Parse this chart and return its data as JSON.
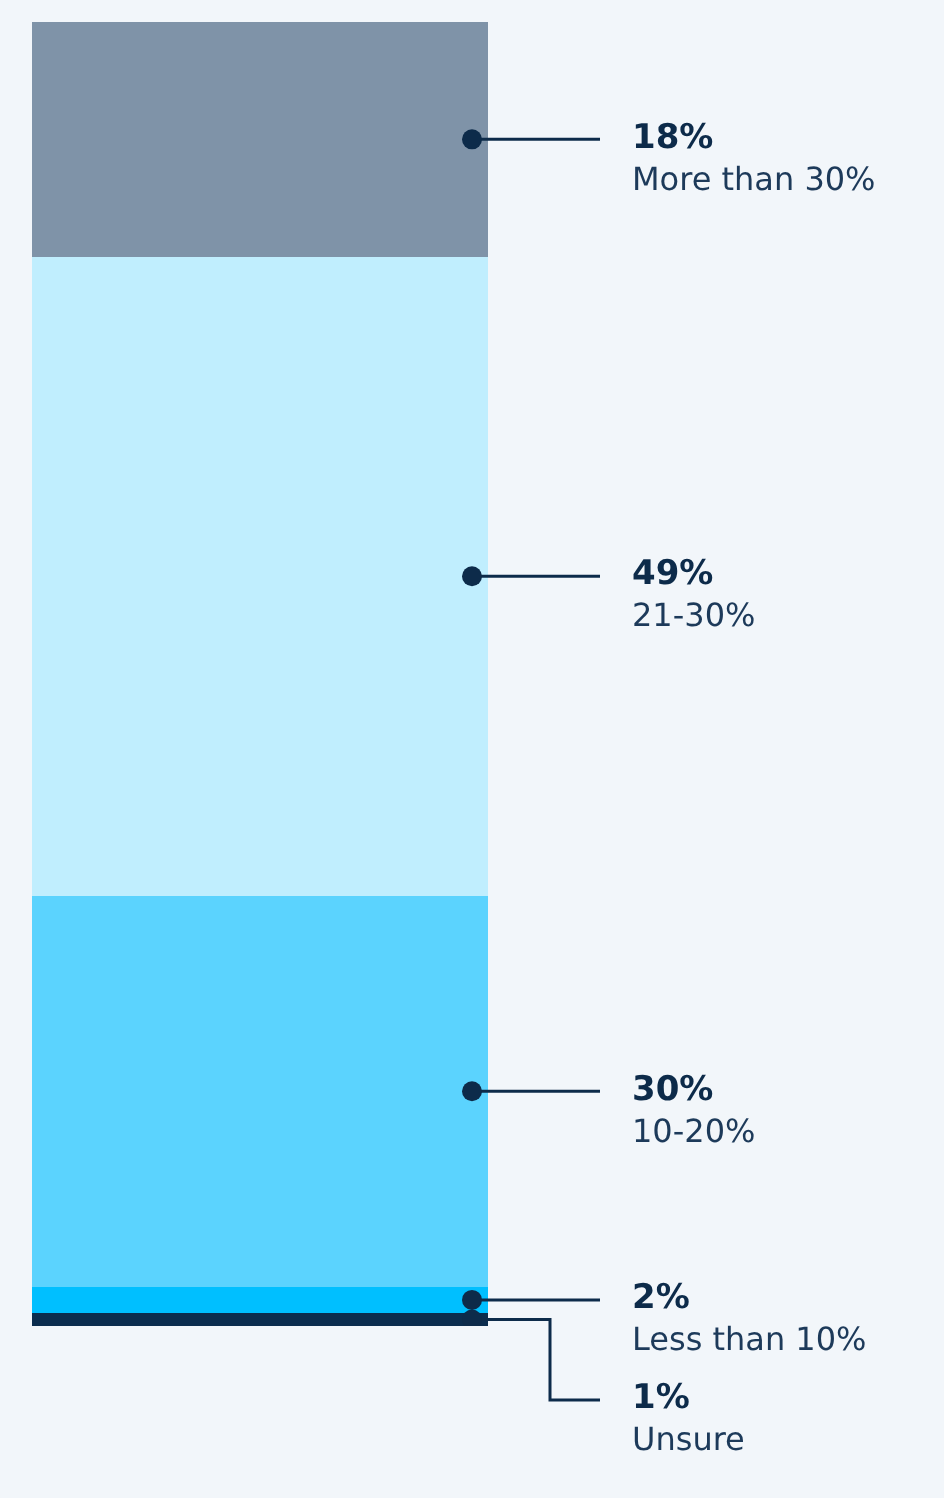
{
  "chart_data": {
    "type": "bar",
    "stacked": true,
    "categories": [
      null
    ],
    "legend": false,
    "series": [
      {
        "name": "Unsure",
        "color": "#0b2d4e",
        "values": [
          1
        ],
        "value_labels": [
          "1%"
        ]
      },
      {
        "name": "Less than 10%",
        "color": "#00bfff",
        "values": [
          2
        ],
        "value_labels": [
          "2%"
        ]
      },
      {
        "name": "10-20%",
        "color": "#5bd3fe",
        "values": [
          30
        ],
        "value_labels": [
          "30%"
        ]
      },
      {
        "name": "21-30%",
        "color": "#c0eefe",
        "values": [
          49
        ],
        "value_labels": [
          "49%"
        ]
      },
      {
        "name": "More than 30%",
        "color": "#7f93a8",
        "values": [
          18
        ],
        "value_labels": [
          "18%"
        ]
      }
    ]
  }
}
